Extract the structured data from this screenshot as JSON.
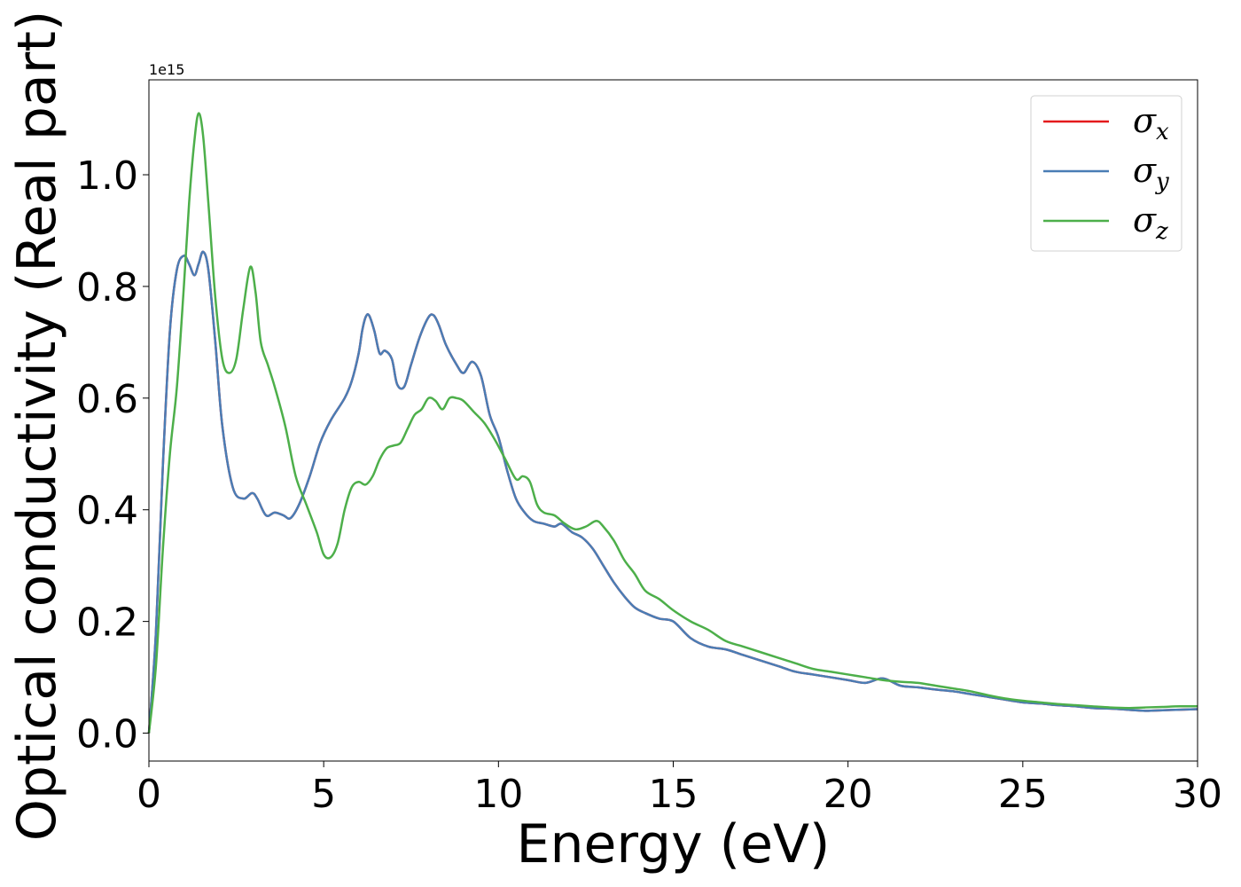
{
  "chart_data": {
    "type": "line",
    "xlabel": "Energy (eV)",
    "ylabel": "Optical conductivity (Real part)",
    "y_offset_label": "1e15",
    "xlim": [
      0,
      30
    ],
    "ylim": [
      -0.05,
      1.17
    ],
    "x_ticks": [
      0,
      5,
      10,
      15,
      20,
      25,
      30
    ],
    "x_tick_labels": [
      "0",
      "5",
      "10",
      "15",
      "20",
      "25",
      "30"
    ],
    "y_ticks": [
      0.0,
      0.2,
      0.4,
      0.6,
      0.8,
      1.0
    ],
    "y_tick_labels": [
      "0.0",
      "0.2",
      "0.4",
      "0.6",
      "0.8",
      "1.0"
    ],
    "grid": false,
    "legend_position": "top-right",
    "series": [
      {
        "name": "σx",
        "symbol": "σ",
        "subscript": "x",
        "color": "#e41a1c",
        "x": [
          0,
          0.2,
          0.4,
          0.6,
          0.8,
          1.0,
          1.15,
          1.3,
          1.42,
          1.55,
          1.7,
          1.9,
          2.1,
          2.4,
          2.7,
          2.95,
          3.1,
          3.35,
          3.6,
          3.85,
          4.05,
          4.3,
          4.6,
          4.9,
          5.2,
          5.6,
          5.8,
          6.0,
          6.1,
          6.2,
          6.3,
          6.45,
          6.6,
          6.75,
          6.95,
          7.1,
          7.3,
          7.5,
          7.75,
          8.0,
          8.15,
          8.3,
          8.5,
          8.8,
          9.0,
          9.25,
          9.5,
          9.75,
          10.0,
          10.25,
          10.5,
          10.75,
          11.0,
          11.3,
          11.6,
          11.8,
          12.1,
          12.4,
          12.7,
          13.0,
          13.3,
          13.6,
          13.9,
          14.2,
          14.6,
          15.0,
          15.5,
          16.0,
          16.5,
          17.0,
          17.5,
          18.0,
          18.5,
          19.0,
          19.5,
          20.0,
          20.5,
          21.0,
          21.5,
          22.0,
          22.5,
          23.0,
          23.5,
          24.0,
          24.5,
          25.0,
          25.5,
          26.0,
          26.5,
          27.0,
          27.5,
          28.0,
          28.5,
          29.0,
          29.5,
          30.0
        ],
        "y": [
          0.0,
          0.18,
          0.48,
          0.72,
          0.83,
          0.855,
          0.84,
          0.82,
          0.84,
          0.862,
          0.83,
          0.7,
          0.55,
          0.44,
          0.42,
          0.43,
          0.42,
          0.39,
          0.395,
          0.39,
          0.385,
          0.41,
          0.46,
          0.52,
          0.56,
          0.6,
          0.63,
          0.68,
          0.72,
          0.745,
          0.748,
          0.72,
          0.68,
          0.685,
          0.67,
          0.625,
          0.62,
          0.66,
          0.71,
          0.745,
          0.748,
          0.73,
          0.695,
          0.66,
          0.645,
          0.665,
          0.64,
          0.57,
          0.53,
          0.47,
          0.42,
          0.395,
          0.38,
          0.375,
          0.37,
          0.375,
          0.36,
          0.35,
          0.33,
          0.3,
          0.27,
          0.245,
          0.225,
          0.215,
          0.205,
          0.2,
          0.17,
          0.155,
          0.15,
          0.14,
          0.13,
          0.12,
          0.11,
          0.105,
          0.1,
          0.095,
          0.09,
          0.098,
          0.085,
          0.082,
          0.078,
          0.075,
          0.07,
          0.065,
          0.06,
          0.055,
          0.053,
          0.05,
          0.048,
          0.045,
          0.044,
          0.042,
          0.04,
          0.041,
          0.042,
          0.043
        ]
      },
      {
        "name": "σy",
        "symbol": "σ",
        "subscript": "y",
        "color": "#4a7db5",
        "x": [
          0,
          0.2,
          0.4,
          0.6,
          0.8,
          1.0,
          1.15,
          1.3,
          1.42,
          1.55,
          1.7,
          1.9,
          2.1,
          2.4,
          2.7,
          2.95,
          3.1,
          3.35,
          3.6,
          3.85,
          4.05,
          4.3,
          4.6,
          4.9,
          5.2,
          5.6,
          5.8,
          6.0,
          6.1,
          6.2,
          6.3,
          6.45,
          6.6,
          6.75,
          6.95,
          7.1,
          7.3,
          7.5,
          7.75,
          8.0,
          8.15,
          8.3,
          8.5,
          8.8,
          9.0,
          9.25,
          9.5,
          9.75,
          10.0,
          10.25,
          10.5,
          10.75,
          11.0,
          11.3,
          11.6,
          11.8,
          12.1,
          12.4,
          12.7,
          13.0,
          13.3,
          13.6,
          13.9,
          14.2,
          14.6,
          15.0,
          15.5,
          16.0,
          16.5,
          17.0,
          17.5,
          18.0,
          18.5,
          19.0,
          19.5,
          20.0,
          20.5,
          21.0,
          21.5,
          22.0,
          22.5,
          23.0,
          23.5,
          24.0,
          24.5,
          25.0,
          25.5,
          26.0,
          26.5,
          27.0,
          27.5,
          28.0,
          28.5,
          29.0,
          29.5,
          30.0
        ],
        "y": [
          0.0,
          0.18,
          0.48,
          0.72,
          0.83,
          0.855,
          0.84,
          0.82,
          0.84,
          0.862,
          0.83,
          0.7,
          0.55,
          0.44,
          0.42,
          0.43,
          0.42,
          0.39,
          0.395,
          0.39,
          0.385,
          0.41,
          0.46,
          0.52,
          0.56,
          0.6,
          0.63,
          0.68,
          0.72,
          0.745,
          0.748,
          0.72,
          0.68,
          0.685,
          0.67,
          0.625,
          0.62,
          0.66,
          0.71,
          0.745,
          0.748,
          0.73,
          0.695,
          0.66,
          0.645,
          0.665,
          0.64,
          0.57,
          0.53,
          0.47,
          0.42,
          0.395,
          0.38,
          0.375,
          0.37,
          0.375,
          0.36,
          0.35,
          0.33,
          0.3,
          0.27,
          0.245,
          0.225,
          0.215,
          0.205,
          0.2,
          0.17,
          0.155,
          0.15,
          0.14,
          0.13,
          0.12,
          0.11,
          0.105,
          0.1,
          0.095,
          0.09,
          0.098,
          0.085,
          0.082,
          0.078,
          0.075,
          0.07,
          0.065,
          0.06,
          0.055,
          0.053,
          0.05,
          0.048,
          0.045,
          0.044,
          0.042,
          0.04,
          0.041,
          0.042,
          0.043
        ]
      },
      {
        "name": "σz",
        "symbol": "σ",
        "subscript": "z",
        "color": "#4daf4a",
        "x": [
          0,
          0.2,
          0.4,
          0.6,
          0.8,
          1.0,
          1.15,
          1.3,
          1.42,
          1.55,
          1.7,
          1.9,
          2.1,
          2.3,
          2.5,
          2.7,
          2.9,
          3.05,
          3.2,
          3.4,
          3.6,
          3.9,
          4.2,
          4.5,
          4.8,
          5.0,
          5.2,
          5.4,
          5.6,
          5.8,
          6.0,
          6.2,
          6.4,
          6.6,
          6.8,
          7.0,
          7.2,
          7.4,
          7.6,
          7.8,
          8.0,
          8.2,
          8.4,
          8.6,
          8.8,
          9.0,
          9.3,
          9.6,
          9.9,
          10.2,
          10.5,
          10.7,
          10.9,
          11.1,
          11.3,
          11.6,
          11.9,
          12.2,
          12.5,
          12.8,
          13.0,
          13.3,
          13.6,
          13.9,
          14.2,
          14.6,
          15.0,
          15.5,
          16.0,
          16.5,
          17.0,
          17.5,
          18.0,
          18.5,
          19.0,
          19.5,
          20.0,
          20.5,
          21.0,
          21.5,
          22.0,
          22.5,
          23.0,
          23.5,
          24.0,
          24.5,
          25.0,
          25.5,
          26.0,
          26.5,
          27.0,
          27.5,
          28.0,
          28.5,
          29.0,
          29.5,
          30.0
        ],
        "y": [
          0.0,
          0.12,
          0.33,
          0.5,
          0.62,
          0.8,
          0.95,
          1.06,
          1.11,
          1.07,
          0.95,
          0.78,
          0.67,
          0.645,
          0.67,
          0.76,
          0.835,
          0.79,
          0.7,
          0.66,
          0.62,
          0.55,
          0.46,
          0.41,
          0.36,
          0.32,
          0.315,
          0.34,
          0.4,
          0.44,
          0.45,
          0.445,
          0.46,
          0.49,
          0.51,
          0.515,
          0.52,
          0.545,
          0.57,
          0.58,
          0.6,
          0.595,
          0.58,
          0.6,
          0.6,
          0.595,
          0.575,
          0.555,
          0.525,
          0.49,
          0.455,
          0.46,
          0.45,
          0.41,
          0.395,
          0.39,
          0.375,
          0.365,
          0.37,
          0.38,
          0.37,
          0.345,
          0.31,
          0.285,
          0.255,
          0.24,
          0.22,
          0.2,
          0.185,
          0.165,
          0.155,
          0.145,
          0.135,
          0.125,
          0.115,
          0.11,
          0.105,
          0.1,
          0.095,
          0.092,
          0.09,
          0.085,
          0.08,
          0.075,
          0.068,
          0.062,
          0.058,
          0.055,
          0.052,
          0.05,
          0.048,
          0.046,
          0.045,
          0.046,
          0.047,
          0.048,
          0.048
        ]
      }
    ]
  }
}
